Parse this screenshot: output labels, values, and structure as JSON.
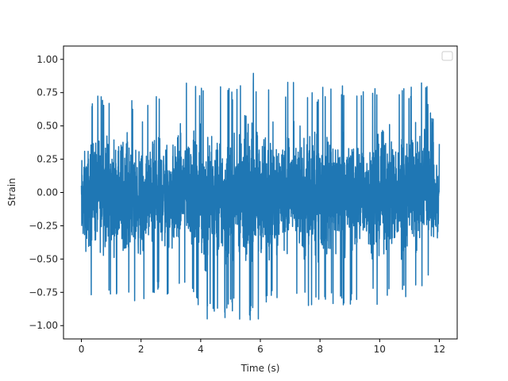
{
  "chart_data": {
    "type": "line",
    "title": "",
    "xlabel": "Time (s)",
    "ylabel": "Strain",
    "xlim": [
      -0.6,
      12.6
    ],
    "ylim": [
      -1.1,
      1.1
    ],
    "x_ticks": [
      0,
      2,
      4,
      6,
      8,
      10,
      12
    ],
    "x_tick_labels": [
      "0",
      "2",
      "4",
      "6",
      "8",
      "10",
      "12"
    ],
    "y_ticks": [
      -1.0,
      -0.75,
      -0.5,
      -0.25,
      0.0,
      0.25,
      0.5,
      0.75,
      1.0
    ],
    "y_tick_labels": [
      "−1.00",
      "−0.75",
      "−0.50",
      "−0.25",
      "0.00",
      "0.25",
      "0.50",
      "0.75",
      "1.00"
    ],
    "grid": false,
    "legend": {
      "placement": "top-right",
      "entries": []
    },
    "series": [
      {
        "color": "#1f77b4",
        "x_range": [
          0,
          12
        ],
        "y_range": [
          -1.0,
          1.0
        ],
        "envelope": {
          "x": [
            0,
            0.5,
            1,
            1.5,
            2,
            2.5,
            3,
            3.5,
            4,
            4.5,
            5,
            5.5,
            6,
            6.5,
            7,
            7.5,
            8,
            8.5,
            9,
            9.5,
            10,
            10.5,
            11,
            11.5,
            12
          ],
          "y_max": [
            0.55,
            0.82,
            0.7,
            0.82,
            0.6,
            0.78,
            0.72,
            0.88,
            0.82,
            0.85,
            0.78,
            1.0,
            0.82,
            0.82,
            0.85,
            0.78,
            0.78,
            0.85,
            0.82,
            0.78,
            0.82,
            0.8,
            0.82,
            0.88,
            0.4
          ],
          "y_min": [
            -0.8,
            -0.78,
            -0.78,
            -0.8,
            -0.85,
            -0.75,
            -0.78,
            -0.75,
            -0.95,
            -0.98,
            -0.92,
            -0.98,
            -0.95,
            -0.82,
            -0.78,
            -0.88,
            -0.8,
            -0.9,
            -0.85,
            -0.82,
            -0.85,
            -0.8,
            -0.82,
            -0.75,
            -0.65
          ]
        }
      }
    ]
  }
}
